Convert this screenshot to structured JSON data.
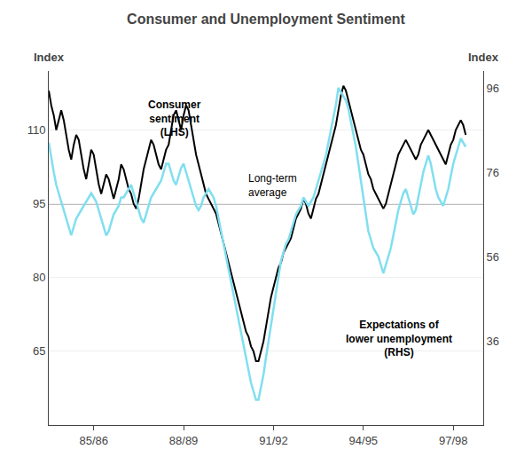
{
  "chart_data": {
    "type": "line",
    "title": "Consumer and Unemployment Sentiment",
    "ylabel": "Index",
    "y2label": "Index",
    "grid": true,
    "x": [
      1984,
      1984.08333,
      1984.16666,
      1984.24999,
      1984.33332,
      1984.41665,
      1984.49998,
      1984.58331,
      1984.66664,
      1984.74997,
      1984.8333,
      1984.91663,
      1984.99996,
      1985.08329,
      1985.16662,
      1985.24995,
      1985.33328,
      1985.41661,
      1985.49994,
      1985.58327,
      1985.6666,
      1985.74993,
      1985.83326,
      1985.91659,
      1985.99992,
      1986.08325,
      1986.16658,
      1986.24991,
      1986.33324,
      1986.41657,
      1986.4999,
      1986.58323,
      1986.66656,
      1986.74989,
      1986.83322,
      1986.91655,
      1986.99988,
      1987.08321,
      1987.16654,
      1987.24987,
      1987.3332,
      1987.41653,
      1987.49986,
      1987.58319,
      1987.66652,
      1987.74985,
      1987.83318,
      1987.91651,
      1987.99984,
      1988.08317,
      1988.1665,
      1988.24983,
      1988.33316,
      1988.41649,
      1988.49982,
      1988.58315,
      1988.66648,
      1988.74981,
      1988.83314,
      1988.91647,
      1988.9998,
      1989.08313,
      1989.16646,
      1989.24979,
      1989.33312,
      1989.41645,
      1989.49978,
      1989.58311,
      1989.66644,
      1989.74977,
      1989.8331,
      1989.91643,
      1989.99976,
      1990.08309,
      1990.16642,
      1990.24975,
      1990.33308,
      1990.41641,
      1990.49974,
      1990.58307,
      1990.6664,
      1990.74973,
      1990.83306,
      1990.91639,
      1990.99972,
      1991.08305,
      1991.16638,
      1991.24971,
      1991.33304,
      1991.41637,
      1991.4997,
      1991.58303,
      1991.66636,
      1991.74969,
      1991.83302,
      1991.91635,
      1991.99968,
      1992.08301,
      1992.16634,
      1992.24967,
      1992.333,
      1992.41633,
      1992.49966,
      1992.58299,
      1992.66632,
      1992.74965,
      1992.83298,
      1992.91631,
      1992.99964,
      1993.08297,
      1993.1663,
      1993.24963,
      1993.33296,
      1993.41629,
      1993.49962,
      1993.58295,
      1993.66628,
      1993.74961,
      1993.83294,
      1993.91627,
      1993.9996,
      1994.08293,
      1994.16626,
      1994.24959,
      1994.33292,
      1994.41625,
      1994.49958,
      1994.58291,
      1994.66624,
      1994.74957,
      1994.8329,
      1994.91623,
      1994.99956,
      1995.08289,
      1995.16622,
      1995.24955,
      1995.33288,
      1995.41621,
      1995.49954,
      1995.58287,
      1995.6662,
      1995.74953,
      1995.83286,
      1995.91619,
      1995.99952,
      1996.08285,
      1996.16618,
      1996.24951,
      1996.33284,
      1996.41617,
      1996.4995,
      1996.58283,
      1996.66616,
      1996.74949,
      1996.83282,
      1996.91615,
      1996.99948,
      1997.08281,
      1997.16614,
      1997.24947,
      1997.3328,
      1997.41613,
      1997.49946,
      1997.58279,
      1997.66612,
      1997.74945,
      1997.83278,
      1997.91611
    ],
    "xlim": [
      1984.0,
      1998.5
    ],
    "xticks": [
      {
        "value": 1985.5,
        "label": "85/86"
      },
      {
        "value": 1988.5,
        "label": "88/89"
      },
      {
        "value": 1991.5,
        "label": "91/92"
      },
      {
        "value": 1994.5,
        "label": "94/95"
      },
      {
        "value": 1997.5,
        "label": "97/98"
      }
    ],
    "ylim": [
      50,
      122
    ],
    "yticks": [
      65,
      80,
      95,
      110
    ],
    "y2lim": [
      16,
      100
    ],
    "y2ticks": [
      36,
      56,
      76,
      96
    ],
    "series": [
      {
        "name": "Consumer\nsentiment\n(LHS)",
        "color": "#000000",
        "values": [
          118,
          115,
          113,
          110,
          112,
          114,
          112,
          109,
          106,
          104,
          107,
          109,
          108,
          105,
          102,
          100,
          103,
          106,
          105,
          102,
          99,
          97,
          99,
          101,
          100,
          98,
          96,
          98,
          100,
          103,
          102,
          100,
          98,
          97,
          95,
          94,
          96,
          99,
          102,
          104,
          106,
          108,
          107,
          105,
          103,
          102,
          104,
          106,
          107,
          110,
          113,
          114,
          112,
          110,
          113,
          115,
          114,
          111,
          108,
          105,
          103,
          101,
          99,
          97,
          96,
          95,
          94,
          93,
          91,
          89,
          87,
          85,
          83,
          81,
          79,
          77,
          75,
          73,
          71,
          69,
          68,
          66,
          65,
          63,
          63,
          65,
          67,
          70,
          73,
          76,
          78,
          80,
          82,
          83,
          85,
          86,
          87,
          88,
          90,
          92,
          93,
          94,
          96,
          95,
          93,
          92,
          94,
          96,
          97,
          99,
          101,
          103,
          105,
          107,
          109,
          111,
          114,
          117,
          119,
          118,
          116,
          114,
          112,
          110,
          108,
          106,
          105,
          103,
          101,
          100,
          98,
          97,
          96,
          95,
          94,
          95,
          97,
          99,
          101,
          103,
          105,
          106,
          107,
          108,
          107,
          106,
          105,
          104,
          105,
          107,
          108,
          109,
          110,
          109,
          108,
          107,
          106,
          105,
          104,
          103,
          105,
          107,
          108,
          110,
          111,
          112,
          111,
          109
        ]
      },
      {
        "name": "Expectations of\nlower unemployment\n(RHS)",
        "color": "#80DFEF",
        "axis": "y2",
        "values": [
          83,
          79,
          76,
          73,
          71,
          69,
          67,
          65,
          63,
          61,
          63,
          65,
          66,
          67,
          68,
          69,
          70,
          71,
          70,
          69,
          67,
          65,
          63,
          61,
          62,
          64,
          66,
          67,
          68,
          70,
          70,
          71,
          72,
          73,
          71,
          69,
          67,
          65,
          64,
          66,
          68,
          70,
          71,
          72,
          73,
          74,
          76,
          78,
          78,
          76,
          74,
          73,
          75,
          77,
          78,
          76,
          74,
          72,
          70,
          68,
          67,
          68,
          70,
          71,
          72,
          71,
          70,
          68,
          65,
          62,
          59,
          56,
          53,
          50,
          47,
          44,
          41,
          38,
          35,
          32,
          29,
          26,
          24,
          22,
          22,
          25,
          28,
          32,
          36,
          40,
          44,
          48,
          52,
          55,
          57,
          59,
          60,
          62,
          64,
          66,
          67,
          68,
          70,
          69,
          68,
          69,
          70,
          72,
          74,
          76,
          78,
          80,
          83,
          86,
          89,
          92,
          96,
          95,
          94,
          93,
          91,
          88,
          85,
          82,
          78,
          74,
          70,
          66,
          62,
          60,
          58,
          57,
          56,
          54,
          52,
          54,
          56,
          58,
          61,
          64,
          67,
          69,
          71,
          72,
          70,
          68,
          66,
          67,
          70,
          73,
          76,
          78,
          80,
          78,
          75,
          72,
          70,
          69,
          68,
          70,
          72,
          75,
          78,
          80,
          82,
          84,
          83,
          82
        ]
      }
    ],
    "reference_line": {
      "value": 95,
      "label": "Long-term\naverage",
      "color": "#808080"
    }
  }
}
